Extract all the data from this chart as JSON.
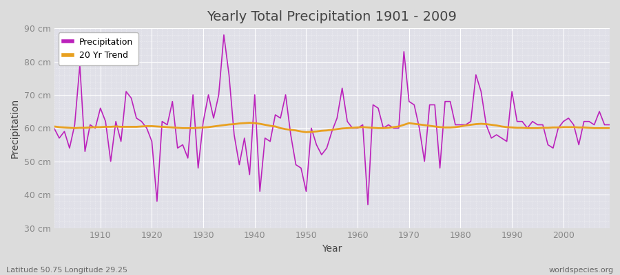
{
  "title": "Yearly Total Precipitation 1901 - 2009",
  "ylabel": "Precipitation",
  "xlabel": "Year",
  "subtitle_left": "Latitude 50.75 Longitude 29.25",
  "subtitle_right": "worldspecies.org",
  "years": [
    1901,
    1902,
    1903,
    1904,
    1905,
    1906,
    1907,
    1908,
    1909,
    1910,
    1911,
    1912,
    1913,
    1914,
    1915,
    1916,
    1917,
    1918,
    1919,
    1920,
    1921,
    1922,
    1923,
    1924,
    1925,
    1926,
    1927,
    1928,
    1929,
    1930,
    1931,
    1932,
    1933,
    1934,
    1935,
    1936,
    1937,
    1938,
    1939,
    1940,
    1941,
    1942,
    1943,
    1944,
    1945,
    1946,
    1947,
    1948,
    1949,
    1950,
    1951,
    1952,
    1953,
    1954,
    1955,
    1956,
    1957,
    1958,
    1959,
    1960,
    1961,
    1962,
    1963,
    1964,
    1965,
    1966,
    1967,
    1968,
    1969,
    1970,
    1971,
    1972,
    1973,
    1974,
    1975,
    1976,
    1977,
    1978,
    1979,
    1980,
    1981,
    1982,
    1983,
    1984,
    1985,
    1986,
    1987,
    1988,
    1989,
    1990,
    1991,
    1992,
    1993,
    1994,
    1995,
    1996,
    1997,
    1998,
    1999,
    2000,
    2001,
    2002,
    2003,
    2004,
    2005,
    2006,
    2007,
    2008,
    2009
  ],
  "precipitation": [
    60,
    57,
    59,
    54,
    61,
    79,
    53,
    61,
    60,
    66,
    62,
    50,
    62,
    56,
    71,
    69,
    63,
    62,
    60,
    56,
    38,
    62,
    61,
    68,
    54,
    55,
    51,
    70,
    48,
    62,
    70,
    63,
    70,
    88,
    76,
    58,
    49,
    57,
    46,
    70,
    41,
    57,
    56,
    64,
    63,
    70,
    58,
    49,
    48,
    41,
    60,
    55,
    52,
    54,
    59,
    63,
    72,
    62,
    60,
    60,
    61,
    37,
    67,
    66,
    60,
    61,
    60,
    60,
    83,
    68,
    67,
    60,
    50,
    67,
    67,
    48,
    68,
    68,
    61,
    61,
    61,
    62,
    76,
    71,
    61,
    57,
    58,
    57,
    56,
    71,
    62,
    62,
    60,
    62,
    61,
    61,
    55,
    54,
    60,
    62,
    63,
    61,
    55,
    62,
    62,
    61,
    65,
    61,
    61
  ],
  "trend": [
    60.5,
    60.3,
    60.2,
    60.1,
    60.0,
    60.1,
    60.1,
    60.2,
    60.3,
    60.3,
    60.4,
    60.4,
    60.5,
    60.4,
    60.4,
    60.4,
    60.4,
    60.5,
    60.6,
    60.6,
    60.5,
    60.4,
    60.3,
    60.2,
    60.1,
    60.0,
    60.0,
    60.0,
    60.1,
    60.2,
    60.3,
    60.5,
    60.7,
    60.9,
    61.1,
    61.2,
    61.4,
    61.5,
    61.6,
    61.5,
    61.3,
    61.0,
    60.7,
    60.5,
    60.0,
    59.7,
    59.5,
    59.3,
    59.0,
    58.8,
    58.9,
    59.0,
    59.2,
    59.3,
    59.5,
    59.7,
    59.9,
    60.0,
    60.1,
    60.2,
    60.3,
    60.2,
    60.1,
    60.0,
    60.0,
    60.1,
    60.3,
    60.5,
    61.0,
    61.5,
    61.3,
    61.1,
    60.9,
    60.7,
    60.5,
    60.3,
    60.2,
    60.2,
    60.3,
    60.5,
    60.8,
    61.0,
    61.2,
    61.3,
    61.2,
    61.0,
    60.8,
    60.5,
    60.3,
    60.2,
    60.1,
    60.1,
    60.0,
    60.0,
    60.0,
    60.1,
    60.1,
    60.2,
    60.2,
    60.3,
    60.3,
    60.3,
    60.2,
    60.2,
    60.1,
    60.0,
    60.0,
    60.0,
    60.0
  ],
  "ylim": [
    30,
    90
  ],
  "yticks": [
    30,
    40,
    50,
    60,
    70,
    80,
    90
  ],
  "ytick_labels": [
    "30 cm",
    "40 cm",
    "50 cm",
    "60 cm",
    "70 cm",
    "80 cm",
    "90 cm"
  ],
  "precip_color": "#BB22BB",
  "trend_color": "#E8A020",
  "fig_bg_color": "#DCDCDC",
  "plot_bg_color": "#E0E0E8",
  "grid_major_color": "#FFFFFF",
  "grid_minor_color": "#FFFFFF",
  "tick_color": "#888888",
  "label_color": "#444444",
  "title_fontsize": 14,
  "axis_label_fontsize": 10,
  "tick_fontsize": 9,
  "legend_fontsize": 9
}
